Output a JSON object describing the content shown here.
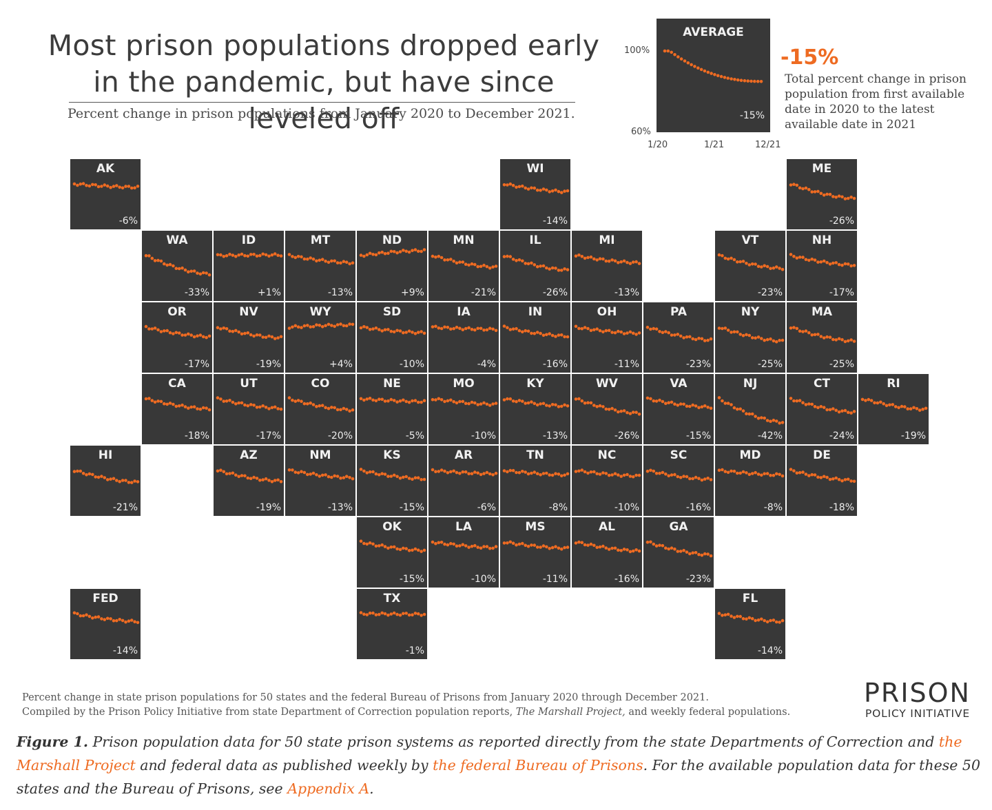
{
  "title": "Most prison populations dropped early in the pandemic, but have since leveled off",
  "subtitle": "Percent change in prison populations from January 2020 to December 2021.",
  "colors": {
    "tile_bg": "#383838",
    "dot": "#ee6b22",
    "accent": "#ee6b22",
    "text": "#3c3c3c"
  },
  "average_panel": {
    "label": "AVERAGE",
    "pct": "-15%",
    "y_ticks": [
      "100%",
      "60%"
    ],
    "x_ticks": [
      "1/20",
      "1/21",
      "12/21"
    ],
    "big_value": "-15%",
    "description": "Total percent change in prison population from first available date in 2020 to the latest available date in 2021"
  },
  "chart_data": {
    "type": "scatter",
    "title": "Most prison populations dropped early in the pandemic, but have since leveled off",
    "subtitle": "Percent change in prison populations from January 2020 to December 2021.",
    "x_range": [
      "1/20",
      "12/21"
    ],
    "ylim": [
      -45,
      10
    ],
    "average": {
      "label": "AVERAGE",
      "change": -15,
      "ylim": [
        60,
        100
      ],
      "y_unit": "%"
    },
    "series": [
      {
        "name": "AK",
        "change": -6
      },
      {
        "name": "WI",
        "change": -14
      },
      {
        "name": "ME",
        "change": -26
      },
      {
        "name": "WA",
        "change": -33
      },
      {
        "name": "ID",
        "change": 1
      },
      {
        "name": "MT",
        "change": -13
      },
      {
        "name": "ND",
        "change": 9
      },
      {
        "name": "MN",
        "change": -21
      },
      {
        "name": "IL",
        "change": -26
      },
      {
        "name": "MI",
        "change": -13
      },
      {
        "name": "VT",
        "change": -23
      },
      {
        "name": "NH",
        "change": -17
      },
      {
        "name": "OR",
        "change": -17
      },
      {
        "name": "NV",
        "change": -19
      },
      {
        "name": "WY",
        "change": 4
      },
      {
        "name": "SD",
        "change": -10
      },
      {
        "name": "IA",
        "change": -4
      },
      {
        "name": "IN",
        "change": -16
      },
      {
        "name": "OH",
        "change": -11
      },
      {
        "name": "PA",
        "change": -23
      },
      {
        "name": "NY",
        "change": -25
      },
      {
        "name": "MA",
        "change": -25
      },
      {
        "name": "CA",
        "change": -18
      },
      {
        "name": "UT",
        "change": -17
      },
      {
        "name": "CO",
        "change": -20
      },
      {
        "name": "NE",
        "change": -5
      },
      {
        "name": "MO",
        "change": -10
      },
      {
        "name": "KY",
        "change": -13
      },
      {
        "name": "WV",
        "change": -26
      },
      {
        "name": "VA",
        "change": -15
      },
      {
        "name": "NJ",
        "change": -42
      },
      {
        "name": "CT",
        "change": -24
      },
      {
        "name": "RI",
        "change": -19
      },
      {
        "name": "HI",
        "change": -21
      },
      {
        "name": "AZ",
        "change": -19
      },
      {
        "name": "NM",
        "change": -13
      },
      {
        "name": "KS",
        "change": -15
      },
      {
        "name": "AR",
        "change": -6
      },
      {
        "name": "TN",
        "change": -8
      },
      {
        "name": "NC",
        "change": -10
      },
      {
        "name": "SC",
        "change": -16
      },
      {
        "name": "MD",
        "change": -8
      },
      {
        "name": "DE",
        "change": -18
      },
      {
        "name": "OK",
        "change": -15
      },
      {
        "name": "LA",
        "change": -10
      },
      {
        "name": "MS",
        "change": -11
      },
      {
        "name": "AL",
        "change": -16
      },
      {
        "name": "GA",
        "change": -23
      },
      {
        "name": "FED",
        "change": -14
      },
      {
        "name": "TX",
        "change": -1
      },
      {
        "name": "FL",
        "change": -14
      }
    ]
  },
  "tiles": [
    {
      "st": "AK",
      "pct": "-6%",
      "r": 0,
      "c": 0
    },
    {
      "st": "WI",
      "pct": "-14%",
      "r": 0,
      "c": 6
    },
    {
      "st": "ME",
      "pct": "-26%",
      "r": 0,
      "c": 10
    },
    {
      "st": "WA",
      "pct": "-33%",
      "r": 1,
      "c": 1
    },
    {
      "st": "ID",
      "pct": "+1%",
      "r": 1,
      "c": 2
    },
    {
      "st": "MT",
      "pct": "-13%",
      "r": 1,
      "c": 3
    },
    {
      "st": "ND",
      "pct": "+9%",
      "r": 1,
      "c": 4
    },
    {
      "st": "MN",
      "pct": "-21%",
      "r": 1,
      "c": 5
    },
    {
      "st": "IL",
      "pct": "-26%",
      "r": 1,
      "c": 6
    },
    {
      "st": "MI",
      "pct": "-13%",
      "r": 1,
      "c": 7
    },
    {
      "st": "VT",
      "pct": "-23%",
      "r": 1,
      "c": 9
    },
    {
      "st": "NH",
      "pct": "-17%",
      "r": 1,
      "c": 10
    },
    {
      "st": "OR",
      "pct": "-17%",
      "r": 2,
      "c": 1
    },
    {
      "st": "NV",
      "pct": "-19%",
      "r": 2,
      "c": 2
    },
    {
      "st": "WY",
      "pct": "+4%",
      "r": 2,
      "c": 3
    },
    {
      "st": "SD",
      "pct": "-10%",
      "r": 2,
      "c": 4
    },
    {
      "st": "IA",
      "pct": "-4%",
      "r": 2,
      "c": 5
    },
    {
      "st": "IN",
      "pct": "-16%",
      "r": 2,
      "c": 6
    },
    {
      "st": "OH",
      "pct": "-11%",
      "r": 2,
      "c": 7
    },
    {
      "st": "PA",
      "pct": "-23%",
      "r": 2,
      "c": 8
    },
    {
      "st": "NY",
      "pct": "-25%",
      "r": 2,
      "c": 9
    },
    {
      "st": "MA",
      "pct": "-25%",
      "r": 2,
      "c": 10
    },
    {
      "st": "CA",
      "pct": "-18%",
      "r": 3,
      "c": 1
    },
    {
      "st": "UT",
      "pct": "-17%",
      "r": 3,
      "c": 2
    },
    {
      "st": "CO",
      "pct": "-20%",
      "r": 3,
      "c": 3
    },
    {
      "st": "NE",
      "pct": "-5%",
      "r": 3,
      "c": 4
    },
    {
      "st": "MO",
      "pct": "-10%",
      "r": 3,
      "c": 5
    },
    {
      "st": "KY",
      "pct": "-13%",
      "r": 3,
      "c": 6
    },
    {
      "st": "WV",
      "pct": "-26%",
      "r": 3,
      "c": 7
    },
    {
      "st": "VA",
      "pct": "-15%",
      "r": 3,
      "c": 8
    },
    {
      "st": "NJ",
      "pct": "-42%",
      "r": 3,
      "c": 9
    },
    {
      "st": "CT",
      "pct": "-24%",
      "r": 3,
      "c": 10
    },
    {
      "st": "RI",
      "pct": "-19%",
      "r": 3,
      "c": 11
    },
    {
      "st": "HI",
      "pct": "-21%",
      "r": 4,
      "c": 0
    },
    {
      "st": "AZ",
      "pct": "-19%",
      "r": 4,
      "c": 2
    },
    {
      "st": "NM",
      "pct": "-13%",
      "r": 4,
      "c": 3
    },
    {
      "st": "KS",
      "pct": "-15%",
      "r": 4,
      "c": 4
    },
    {
      "st": "AR",
      "pct": "-6%",
      "r": 4,
      "c": 5
    },
    {
      "st": "TN",
      "pct": "-8%",
      "r": 4,
      "c": 6
    },
    {
      "st": "NC",
      "pct": "-10%",
      "r": 4,
      "c": 7
    },
    {
      "st": "SC",
      "pct": "-16%",
      "r": 4,
      "c": 8
    },
    {
      "st": "MD",
      "pct": "-8%",
      "r": 4,
      "c": 9
    },
    {
      "st": "DE",
      "pct": "-18%",
      "r": 4,
      "c": 10
    },
    {
      "st": "OK",
      "pct": "-15%",
      "r": 5,
      "c": 4
    },
    {
      "st": "LA",
      "pct": "-10%",
      "r": 5,
      "c": 5
    },
    {
      "st": "MS",
      "pct": "-11%",
      "r": 5,
      "c": 6
    },
    {
      "st": "AL",
      "pct": "-16%",
      "r": 5,
      "c": 7
    },
    {
      "st": "GA",
      "pct": "-23%",
      "r": 5,
      "c": 8
    },
    {
      "st": "FED",
      "pct": "-14%",
      "r": 6,
      "c": 0
    },
    {
      "st": "TX",
      "pct": "-1%",
      "r": 6,
      "c": 4
    },
    {
      "st": "FL",
      "pct": "-14%",
      "r": 6,
      "c": 9
    }
  ],
  "source_note_1": "Percent change in state prison populations for 50 states and the federal Bureau of Prisons from January 2020 through December 2021.",
  "source_note_2a": "Compiled by the Prison Policy Initiative from state Department of Correction population reports, ",
  "source_note_2b": "The Marshall Project,",
  "source_note_2c": " and weekly federal populations.",
  "logo_line1": "PRISON",
  "logo_line2": "POLICY INITIATIVE",
  "caption": {
    "lead": "Figure 1.",
    "t1": " Prison population data for 50 state prison systems as reported directly from the state Departments of Correction and ",
    "link1": "the Marshall Project",
    "t2": " and federal data as published weekly by ",
    "link2": "the federal Bureau of Prisons",
    "t3": ". For the available population data for these 50 states and the Bureau of Prisons, see ",
    "link3": "Appendix A",
    "t4": "."
  }
}
